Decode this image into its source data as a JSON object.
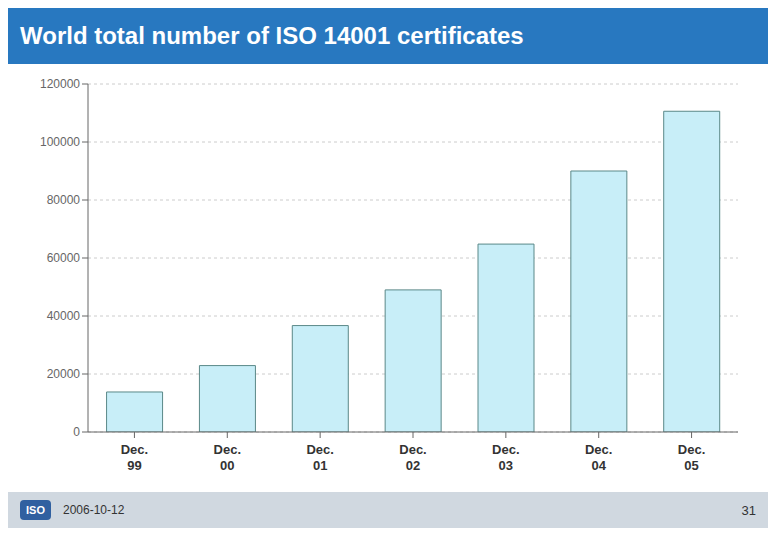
{
  "chart_data": {
    "type": "bar",
    "title": "World total number of ISO 14001 certificates",
    "categories": [
      "Dec.\n99",
      "Dec.\n00",
      "Dec.\n01",
      "Dec.\n02",
      "Dec.\n03",
      "Dec.\n04",
      "Dec.\n05"
    ],
    "values": [
      13800,
      22900,
      36700,
      49000,
      64800,
      90000,
      110600
    ],
    "color": "#c8eef8",
    "ylim": [
      0,
      120000
    ],
    "yticks": [
      0,
      20000,
      40000,
      60000,
      80000,
      100000,
      120000
    ],
    "grid": true,
    "annotations": [
      "ISO",
      "2006-10-12",
      "31"
    ]
  }
}
